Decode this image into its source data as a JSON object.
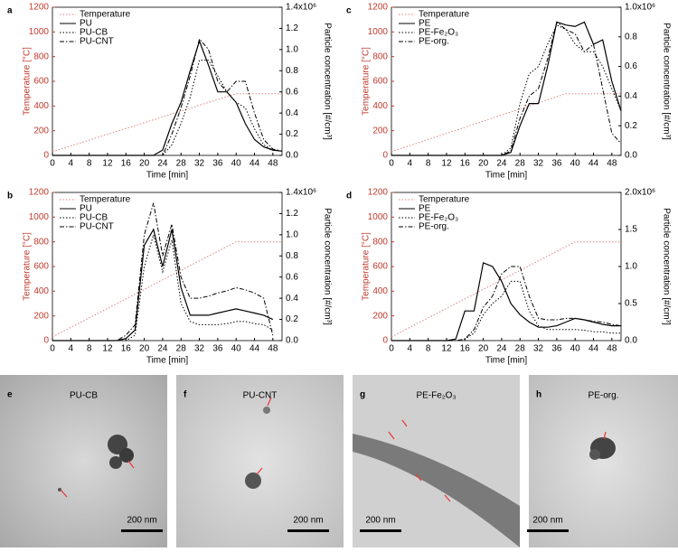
{
  "chart_data": [
    {
      "type": "line",
      "label": "a",
      "xlabel": "Time [min]",
      "ylabel": "Temperature [°C]",
      "y2label": "Particle concentration [#/cm³]",
      "xlim": [
        0,
        50
      ],
      "xticks": [
        0,
        4,
        8,
        12,
        16,
        20,
        24,
        28,
        32,
        36,
        40,
        44,
        48
      ],
      "ylim": [
        0,
        1200
      ],
      "yticks": [
        0,
        200,
        400,
        600,
        800,
        1000,
        1200
      ],
      "y2lim": [
        0,
        1400000
      ],
      "y2ticks": [
        {
          "value": 0,
          "label": "0.0"
        },
        {
          "value": 200000,
          "label": "0.2"
        },
        {
          "value": 400000,
          "label": "0.4"
        },
        {
          "value": 600000,
          "label": "0.6"
        },
        {
          "value": 800000,
          "label": "0.8"
        },
        {
          "value": 1000000,
          "label": "1.0"
        },
        {
          "value": 1200000,
          "label": "1.2"
        },
        {
          "value": 1400000,
          "label": "1.4x10⁶"
        }
      ],
      "series": [
        {
          "name": "Temperature",
          "color": "#e08080",
          "style": "dotted",
          "x": [
            0,
            40,
            50
          ],
          "values": [
            30,
            500,
            500
          ]
        },
        {
          "name": "PU",
          "color": "#000000",
          "style": "solid",
          "axis": "y2",
          "x": [
            0,
            22,
            24,
            26,
            28,
            30,
            32,
            34,
            36,
            38,
            40,
            42,
            44,
            46,
            48,
            50
          ],
          "values": [
            0,
            0,
            50000,
            300000,
            500000,
            800000,
            1080000,
            850000,
            600000,
            600000,
            500000,
            300000,
            150000,
            80000,
            50000,
            40000
          ]
        },
        {
          "name": "PU-CB",
          "color": "#000000",
          "style": "dotted",
          "axis": "y2",
          "x": [
            0,
            22,
            24,
            26,
            28,
            30,
            32,
            34,
            36,
            38,
            40,
            42,
            44,
            46,
            48,
            50
          ],
          "values": [
            0,
            0,
            0,
            100000,
            300000,
            550000,
            900000,
            900000,
            750000,
            600000,
            500000,
            450000,
            250000,
            100000,
            50000,
            40000
          ]
        },
        {
          "name": "PU-CNT",
          "color": "#000000",
          "style": "dashdot",
          "axis": "y2",
          "x": [
            0,
            22,
            24,
            26,
            28,
            30,
            32,
            34,
            36,
            38,
            40,
            42,
            44,
            46,
            48,
            50
          ],
          "values": [
            0,
            0,
            0,
            200000,
            450000,
            750000,
            1100000,
            1000000,
            700000,
            600000,
            700000,
            700000,
            400000,
            150000,
            60000,
            40000
          ]
        }
      ]
    },
    {
      "type": "line",
      "label": "b",
      "xlabel": "Time [min]",
      "ylabel": "Temperature [°C]",
      "y2label": "Particle concentration [#/cm³]",
      "xlim": [
        0,
        50
      ],
      "xticks": [
        0,
        4,
        8,
        12,
        16,
        20,
        24,
        28,
        32,
        36,
        40,
        44,
        48
      ],
      "ylim": [
        0,
        1200
      ],
      "yticks": [
        0,
        200,
        400,
        600,
        800,
        1000,
        1200
      ],
      "y2lim": [
        0,
        1400000
      ],
      "y2ticks": [
        {
          "value": 0,
          "label": "0.0"
        },
        {
          "value": 200000,
          "label": "0.2"
        },
        {
          "value": 400000,
          "label": "0.4"
        },
        {
          "value": 600000,
          "label": "0.6"
        },
        {
          "value": 800000,
          "label": "0.8"
        },
        {
          "value": 1000000,
          "label": "1.0"
        },
        {
          "value": 1200000,
          "label": "1.2"
        },
        {
          "value": 1400000,
          "label": "1.4x10⁶"
        }
      ],
      "series": [
        {
          "name": "Temperature",
          "color": "#e08080",
          "style": "dotted",
          "x": [
            0,
            40,
            50
          ],
          "values": [
            30,
            800,
            800
          ]
        },
        {
          "name": "PU",
          "color": "#000000",
          "style": "solid",
          "axis": "y2",
          "x": [
            0,
            14,
            16,
            18,
            20,
            22,
            24,
            26,
            28,
            30,
            32,
            34,
            36,
            38,
            40,
            42,
            44,
            46,
            48
          ],
          "values": [
            0,
            0,
            20000,
            100000,
            900000,
            1050000,
            700000,
            1050000,
            500000,
            240000,
            240000,
            240000,
            260000,
            280000,
            300000,
            280000,
            260000,
            240000,
            200000
          ]
        },
        {
          "name": "PU-CB",
          "color": "#000000",
          "style": "dotted",
          "axis": "y2",
          "x": [
            0,
            14,
            16,
            18,
            20,
            22,
            24,
            26,
            28,
            30,
            32,
            34,
            36,
            38,
            40,
            42,
            44,
            46,
            48
          ],
          "values": [
            0,
            0,
            0,
            50000,
            700000,
            1000000,
            650000,
            950000,
            350000,
            180000,
            150000,
            150000,
            150000,
            160000,
            180000,
            180000,
            160000,
            150000,
            100000
          ]
        },
        {
          "name": "PU-CNT",
          "color": "#000000",
          "style": "dashdot",
          "axis": "y2",
          "x": [
            0,
            14,
            16,
            18,
            20,
            22,
            24,
            26,
            28,
            30,
            32,
            34,
            36,
            38,
            40,
            42,
            44,
            46,
            48
          ],
          "values": [
            0,
            0,
            50000,
            150000,
            1000000,
            1300000,
            800000,
            1100000,
            600000,
            400000,
            400000,
            420000,
            450000,
            470000,
            500000,
            480000,
            450000,
            400000,
            50000
          ]
        }
      ]
    },
    {
      "type": "line",
      "label": "c",
      "xlabel": "Time [min]",
      "ylabel": "Temperature [°C]",
      "y2label": "Particle concentration [#/cm³]",
      "xlim": [
        0,
        50
      ],
      "xticks": [
        0,
        4,
        8,
        12,
        16,
        20,
        24,
        28,
        32,
        36,
        40,
        44,
        48
      ],
      "ylim": [
        0,
        1200
      ],
      "yticks": [
        0,
        200,
        400,
        600,
        800,
        1000,
        1200
      ],
      "y2lim": [
        0,
        1000000
      ],
      "y2ticks": [
        {
          "value": 0,
          "label": "0.0"
        },
        {
          "value": 200000,
          "label": "0.2"
        },
        {
          "value": 400000,
          "label": "0.4"
        },
        {
          "value": 600000,
          "label": "0.6"
        },
        {
          "value": 800000,
          "label": "0.8"
        },
        {
          "value": 1000000,
          "label": "1.0x10⁶"
        }
      ],
      "series": [
        {
          "name": "Temperature",
          "color": "#e08080",
          "style": "dotted",
          "x": [
            0,
            38,
            50
          ],
          "values": [
            30,
            500,
            500
          ]
        },
        {
          "name": "PE",
          "color": "#000000",
          "style": "solid",
          "axis": "y2",
          "x": [
            0,
            24,
            26,
            28,
            30,
            32,
            34,
            36,
            38,
            40,
            42,
            44,
            46,
            48,
            50
          ],
          "values": [
            0,
            0,
            20000,
            200000,
            350000,
            350000,
            600000,
            900000,
            880000,
            870000,
            900000,
            750000,
            780000,
            500000,
            300000
          ]
        },
        {
          "name": "PE-Fe₂O₃",
          "color": "#000000",
          "style": "dotted",
          "axis": "y2",
          "x": [
            0,
            24,
            26,
            28,
            30,
            32,
            34,
            36,
            38,
            40,
            42,
            44,
            46,
            48,
            50
          ],
          "values": [
            0,
            0,
            50000,
            350000,
            550000,
            600000,
            750000,
            880000,
            850000,
            750000,
            700000,
            700000,
            600000,
            450000,
            300000
          ]
        },
        {
          "name": "PE-org.",
          "color": "#000000",
          "style": "dashdot",
          "axis": "y2",
          "x": [
            0,
            24,
            26,
            28,
            30,
            32,
            34,
            36,
            38,
            40,
            42,
            44,
            46,
            48,
            50
          ],
          "values": [
            0,
            0,
            30000,
            250000,
            400000,
            450000,
            650000,
            900000,
            850000,
            820000,
            700000,
            750000,
            450000,
            150000,
            80000
          ]
        }
      ]
    },
    {
      "type": "line",
      "label": "d",
      "xlabel": "Time [min]",
      "ylabel": "Temperature [°C]",
      "y2label": "Particle concentration [#/cm³]",
      "xlim": [
        0,
        50
      ],
      "xticks": [
        0,
        4,
        8,
        12,
        16,
        20,
        24,
        28,
        32,
        36,
        40,
        44,
        48
      ],
      "ylim": [
        0,
        1200
      ],
      "yticks": [
        0,
        200,
        400,
        600,
        800,
        1000,
        1200
      ],
      "y2lim": [
        0,
        2000000
      ],
      "y2ticks": [
        {
          "value": 0,
          "label": "0.0"
        },
        {
          "value": 500000,
          "label": "0.5"
        },
        {
          "value": 1000000,
          "label": "1.0"
        },
        {
          "value": 1500000,
          "label": "1.5"
        },
        {
          "value": 2000000,
          "label": "2.0x10⁶"
        }
      ],
      "series": [
        {
          "name": "Temperature",
          "color": "#e08080",
          "style": "dotted",
          "x": [
            0,
            40,
            50
          ],
          "values": [
            30,
            800,
            800
          ]
        },
        {
          "name": "PE",
          "color": "#000000",
          "style": "solid",
          "axis": "y2",
          "x": [
            0,
            12,
            14,
            16,
            18,
            20,
            22,
            24,
            26,
            28,
            30,
            32,
            34,
            36,
            38,
            40,
            42,
            44,
            46,
            48,
            50
          ],
          "values": [
            0,
            0,
            20000,
            400000,
            400000,
            1050000,
            1000000,
            800000,
            500000,
            350000,
            250000,
            180000,
            180000,
            200000,
            250000,
            300000,
            280000,
            250000,
            220000,
            200000,
            200000
          ]
        },
        {
          "name": "PE-Fe₂O₃",
          "color": "#000000",
          "style": "dotted",
          "axis": "y2",
          "x": [
            0,
            12,
            14,
            16,
            18,
            20,
            22,
            24,
            26,
            28,
            30,
            32,
            34,
            36,
            38,
            40,
            42,
            44,
            46,
            48,
            50
          ],
          "values": [
            0,
            0,
            0,
            20000,
            100000,
            350000,
            500000,
            600000,
            800000,
            800000,
            400000,
            200000,
            150000,
            150000,
            150000,
            150000,
            140000,
            120000,
            120000,
            100000,
            100000
          ]
        },
        {
          "name": "PE-org.",
          "color": "#000000",
          "style": "dashdot",
          "axis": "y2",
          "x": [
            0,
            12,
            14,
            16,
            18,
            20,
            22,
            24,
            26,
            28,
            30,
            32,
            34,
            36,
            38,
            40,
            42,
            44,
            46,
            48,
            50
          ],
          "values": [
            0,
            0,
            0,
            20000,
            150000,
            450000,
            600000,
            900000,
            1000000,
            1000000,
            600000,
            300000,
            280000,
            280000,
            300000,
            300000,
            280000,
            260000,
            250000,
            220000,
            200000
          ]
        }
      ]
    }
  ],
  "images": [
    {
      "label": "e",
      "caption": "PU-CB",
      "scale": "200 nm"
    },
    {
      "label": "f",
      "caption": "PU-CNT",
      "scale": "200 nm"
    },
    {
      "label": "g",
      "caption": "PE-Fe₂O₃",
      "scale": "200 nm"
    },
    {
      "label": "h",
      "caption": "PE-org.",
      "scale": "200 nm"
    }
  ]
}
